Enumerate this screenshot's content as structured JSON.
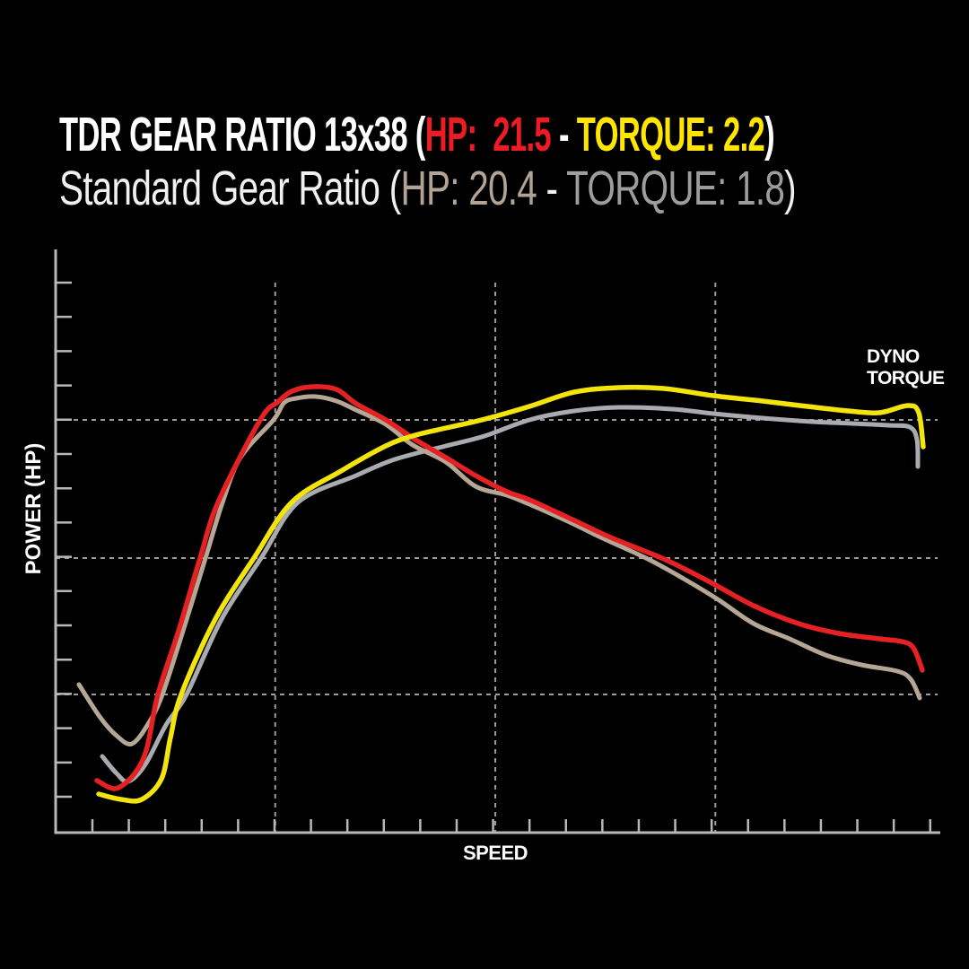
{
  "page": {
    "background": "#000000"
  },
  "header": {
    "line1": {
      "prefix": "TDR GEAR RATIO 13x38 (",
      "hp": "HP:  21.5",
      "separator": " - ",
      "torque": "TORQUE: 2.2",
      "suffix": ")",
      "hp_color": "#ed1c24",
      "torque_color": "#ffe600",
      "text_color": "#ffffff"
    },
    "line2": {
      "prefix": "Standard Gear Ratio (",
      "hp": "HP: 20.4",
      "separator": " - ",
      "torque": "TORQUE: 1.8",
      "suffix": ")",
      "hp_color": "#b2a394",
      "torque_color": "#9d9d9d",
      "text_color": "#f0f0f0"
    }
  },
  "chart_data": {
    "type": "line",
    "title": "",
    "xlabel": "SPEED",
    "ylabel": "POWER (HP)",
    "annotation_lines": [
      "DYNO",
      "TORQUE"
    ],
    "x_range": [
      0,
      100
    ],
    "y_range": [
      0,
      100
    ],
    "legend_position": "none",
    "grid": {
      "on": true,
      "style": "dashed",
      "color": "#9c9c9c",
      "vlines_x": [
        24.9,
        49.85,
        74.8
      ],
      "vline_top_y": 95.04,
      "hlines_y": [
        71.32,
        47.44,
        23.88
      ]
    },
    "axes": {
      "color": "#b8b8b8",
      "x_ticks": [
        4.17,
        8.3,
        12.43,
        16.56,
        20.69,
        24.82,
        28.95,
        33.08,
        37.21,
        41.34,
        45.47,
        49.6,
        53.73,
        57.86,
        61.99,
        66.12,
        70.25,
        74.38,
        78.51,
        82.64,
        86.77,
        90.9,
        95.03,
        99.16
      ],
      "y_ticks": [
        95.04,
        89.12,
        83.19,
        77.27,
        71.35,
        65.43,
        59.5,
        53.58,
        47.66,
        41.74,
        35.81,
        29.89,
        23.97,
        18.05,
        12.12,
        6.2
      ],
      "x_tick_len": 15,
      "y_tick_len": 18
    },
    "series": [
      {
        "name": "standard-torque",
        "label": "Standard Gear Ratio TORQUE",
        "peak_value": 1.8,
        "color": "#a8abaf",
        "width": 5,
        "points": [
          [
            5.29,
            13.18
          ],
          [
            6.92,
            10.23
          ],
          [
            8.24,
            8.84
          ],
          [
            10.17,
            11.78
          ],
          [
            12.51,
            18.6
          ],
          [
            14.85,
            23.88
          ],
          [
            18.82,
            36.9
          ],
          [
            23.3,
            47.44
          ],
          [
            27.47,
            57.05
          ],
          [
            34.08,
            61.71
          ],
          [
            38.45,
            64.5
          ],
          [
            44.25,
            66.82
          ],
          [
            48.63,
            68.53
          ],
          [
            53.71,
            71.32
          ],
          [
            58.8,
            72.87
          ],
          [
            63.89,
            73.49
          ],
          [
            69.99,
            73.18
          ],
          [
            74.57,
            72.4
          ],
          [
            80.16,
            71.63
          ],
          [
            85.76,
            71.01
          ],
          [
            90.34,
            70.7
          ],
          [
            94.4,
            70.39
          ],
          [
            96.85,
            70.08
          ],
          [
            97.66,
            67.91
          ],
          [
            97.76,
            63.26
          ]
        ]
      },
      {
        "name": "standard-hp",
        "label": "Standard Gear Ratio HP",
        "peak_value": 20.4,
        "color": "#b6a695",
        "width": 5,
        "points": [
          [
            2.64,
            25.58
          ],
          [
            5.09,
            19.84
          ],
          [
            6.92,
            16.74
          ],
          [
            8.65,
            15.35
          ],
          [
            10.48,
            18.76
          ],
          [
            12.11,
            23.88
          ],
          [
            14.55,
            35.35
          ],
          [
            16.99,
            47.44
          ],
          [
            18.92,
            57.05
          ],
          [
            20.96,
            64.81
          ],
          [
            24.7,
            71.32
          ],
          [
            25.9,
            74.26
          ],
          [
            27.26,
            75.04
          ],
          [
            29.5,
            75.35
          ],
          [
            31.84,
            74.57
          ],
          [
            34.08,
            73.02
          ],
          [
            37.44,
            70.54
          ],
          [
            40.49,
            66.98
          ],
          [
            44.25,
            64.03
          ],
          [
            47.61,
            59.84
          ],
          [
            51.17,
            58.29
          ],
          [
            53.71,
            56.74
          ],
          [
            58.29,
            53.64
          ],
          [
            62.05,
            50.85
          ],
          [
            67.14,
            47.29
          ],
          [
            71.21,
            43.88
          ],
          [
            75.08,
            40.31
          ],
          [
            79.14,
            36.12
          ],
          [
            83.21,
            33.49
          ],
          [
            87.28,
            30.7
          ],
          [
            91.35,
            28.99
          ],
          [
            95.42,
            27.91
          ],
          [
            96.95,
            26.51
          ],
          [
            97.97,
            23.26
          ]
        ]
      },
      {
        "name": "tdr-hp",
        "label": "TDR Gear Ratio 13x38 HP",
        "peak_value": 21.5,
        "color": "#e62123",
        "width": 5.5,
        "points": [
          [
            4.68,
            8.99
          ],
          [
            7.12,
            7.75
          ],
          [
            9.97,
            12.87
          ],
          [
            11.6,
            23.88
          ],
          [
            14.04,
            35.35
          ],
          [
            16.38,
            47.44
          ],
          [
            18.41,
            57.05
          ],
          [
            23.2,
            71.32
          ],
          [
            25.2,
            74.42
          ],
          [
            26.8,
            76.28
          ],
          [
            29.09,
            77.05
          ],
          [
            31.84,
            76.59
          ],
          [
            34.08,
            74.11
          ],
          [
            37.44,
            71.32
          ],
          [
            40.79,
            67.91
          ],
          [
            44.25,
            64.81
          ],
          [
            47.61,
            61.71
          ],
          [
            51.17,
            58.91
          ],
          [
            53.71,
            57.52
          ],
          [
            58.8,
            53.95
          ],
          [
            63.17,
            50.85
          ],
          [
            68.97,
            47.29
          ],
          [
            74.06,
            43.41
          ],
          [
            79.14,
            39.22
          ],
          [
            84.23,
            36.12
          ],
          [
            88.81,
            34.42
          ],
          [
            93.39,
            33.49
          ],
          [
            95.93,
            33.02
          ],
          [
            97.25,
            31.94
          ],
          [
            98.27,
            28.06
          ]
        ]
      },
      {
        "name": "tdr-torque",
        "label": "TDR Gear Ratio 13x38 TORQUE",
        "peak_value": 2.2,
        "color": "#f2e40c",
        "width": 5.5,
        "points": [
          [
            4.88,
            6.67
          ],
          [
            7.43,
            5.74
          ],
          [
            9.77,
            5.74
          ],
          [
            12,
            9.3
          ],
          [
            13.02,
            16.43
          ],
          [
            14.24,
            23.88
          ],
          [
            18.11,
            36.9
          ],
          [
            22.48,
            47.44
          ],
          [
            26.75,
            57.05
          ],
          [
            32.35,
            62.48
          ],
          [
            37.44,
            66.82
          ],
          [
            40.79,
            68.68
          ],
          [
            44.25,
            69.92
          ],
          [
            48.32,
            71.32
          ],
          [
            53.71,
            73.64
          ],
          [
            58.8,
            76.12
          ],
          [
            63.89,
            76.9
          ],
          [
            68.97,
            76.74
          ],
          [
            74.57,
            75.5
          ],
          [
            80.16,
            74.57
          ],
          [
            85.25,
            73.64
          ],
          [
            89.83,
            72.87
          ],
          [
            93.39,
            72.56
          ],
          [
            96.64,
            73.8
          ],
          [
            97.86,
            72.56
          ],
          [
            98.37,
            66.67
          ]
        ]
      }
    ]
  }
}
